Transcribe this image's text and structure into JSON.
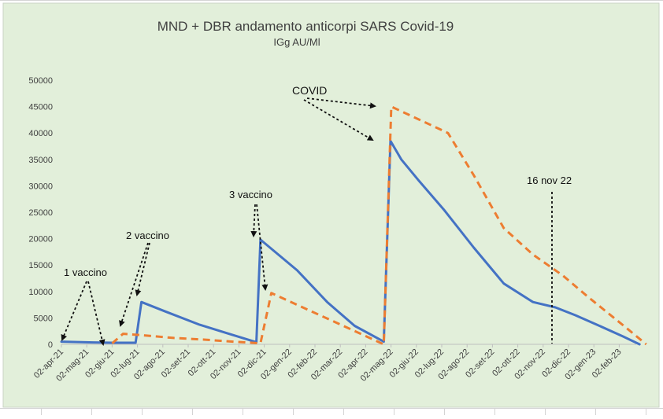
{
  "chart_data": {
    "type": "line",
    "title": "MND + DBR andamento anticorpi SARS Covid-19",
    "subtitle": "IGg AU/Ml",
    "xlabel": "",
    "ylabel": "",
    "ylim": [
      0,
      50000
    ],
    "yticks": [
      "0",
      "5000",
      "10000",
      "15000",
      "20000",
      "25000",
      "30000",
      "35000",
      "40000",
      "45000",
      "50000"
    ],
    "xticks": [
      "02-apr-21",
      "02-mag-21",
      "02-giu-21",
      "02-lug-21",
      "02-ago-21",
      "02-set-21",
      "02-ott-21",
      "02-nov-21",
      "02-dic-21",
      "02-gen-22",
      "02-feb-22",
      "02-mar-22",
      "02-apr-22",
      "02-mag-22",
      "02-giu-22",
      "02-lug-22",
      "02-ago-22",
      "02-set-22",
      "02-ott-22",
      "02-nov-22",
      "02-dic-22",
      "02-gen-23",
      "02-feb-23"
    ],
    "grid": false,
    "background_color": "#e2efda",
    "series": [
      {
        "color": "#4472c4",
        "style": "solid",
        "x": [
          "2021-04-02",
          "2021-05-10",
          "2021-06-02",
          "2021-06-30",
          "2021-07-07",
          "2021-08-05",
          "2021-09-15",
          "2021-10-20",
          "2021-11-22",
          "2021-11-27",
          "2022-01-10",
          "2022-02-15",
          "2022-03-20",
          "2022-04-24",
          "2022-05-02",
          "2022-05-15",
          "2022-06-05",
          "2022-07-05",
          "2022-08-10",
          "2022-09-15",
          "2022-10-20",
          "2022-11-16",
          "2022-12-10",
          "2023-01-05",
          "2023-02-05",
          "2023-02-25"
        ],
        "y": [
          500,
          350,
          300,
          300,
          8000,
          6200,
          3700,
          2000,
          400,
          19800,
          14000,
          8000,
          3500,
          500,
          38500,
          35000,
          31000,
          25500,
          18300,
          11500,
          8000,
          7000,
          5500,
          3700,
          1500,
          0
        ]
      },
      {
        "color": "#ed7d31",
        "style": "dashed",
        "x": [
          "2021-06-02",
          "2021-06-15",
          "2021-07-10",
          "2021-08-15",
          "2021-09-20",
          "2021-10-25",
          "2021-11-27",
          "2021-12-10",
          "2022-04-24",
          "2022-05-03",
          "2022-07-10",
          "2022-08-10",
          "2022-09-15",
          "2022-10-20",
          "2022-11-25",
          "2022-12-25",
          "2023-02-10",
          "2023-03-05"
        ],
        "y": [
          200,
          2000,
          1700,
          1200,
          900,
          500,
          200,
          9700,
          0,
          45000,
          40000,
          32000,
          22000,
          17000,
          13000,
          9000,
          3000,
          0
        ]
      }
    ],
    "annotations": [
      {
        "text": "COVID"
      },
      {
        "text": "3 vaccino"
      },
      {
        "text": "2 vaccino"
      },
      {
        "text": "1 vaccino"
      },
      {
        "text": "16 nov 22"
      }
    ]
  }
}
